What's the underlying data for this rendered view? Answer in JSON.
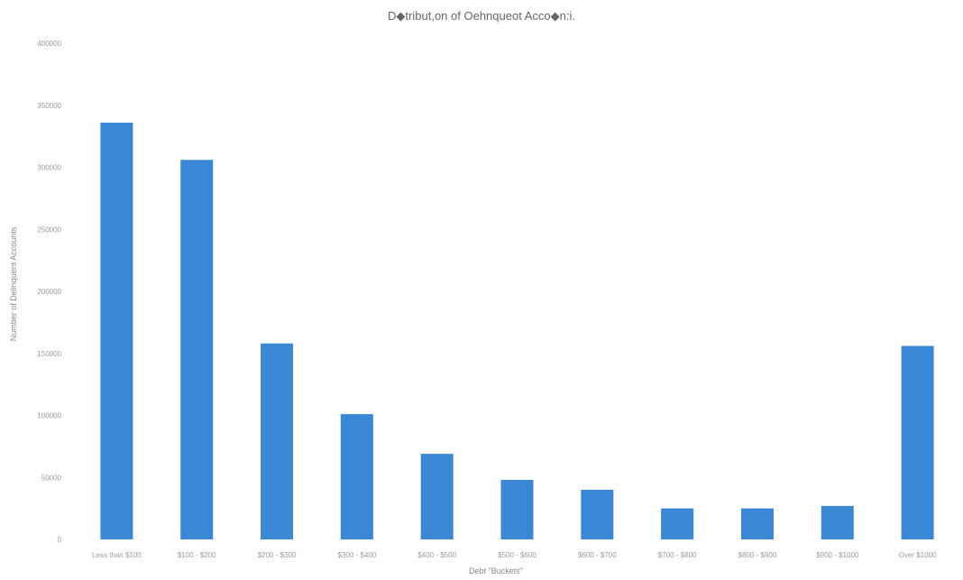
{
  "chart_data": {
    "type": "bar",
    "title": "D◆tribut,on of Oehnqueot Acco◆n:i.",
    "xlabel": "Debt \"Buckets\"",
    "ylabel": "Number of Delinquent Accounts",
    "categories": [
      "Less than $100",
      "$100 - $200",
      "$200 - $300",
      "$300 - $400",
      "$400 - $500",
      "$500 - $600",
      "$600 - $700",
      "$700 - $800",
      "$800 - $900",
      "$900 - $1000",
      "Over $1000"
    ],
    "values": [
      336000,
      306000,
      158000,
      101000,
      69000,
      48000,
      40000,
      25000,
      25000,
      27000,
      156000
    ],
    "ylim": [
      0,
      400000
    ],
    "yticks": [
      0,
      50000,
      100000,
      150000,
      200000,
      250000,
      300000,
      350000,
      400000
    ],
    "bar_color": "#3a87d6",
    "grid": false,
    "legend": "none"
  }
}
